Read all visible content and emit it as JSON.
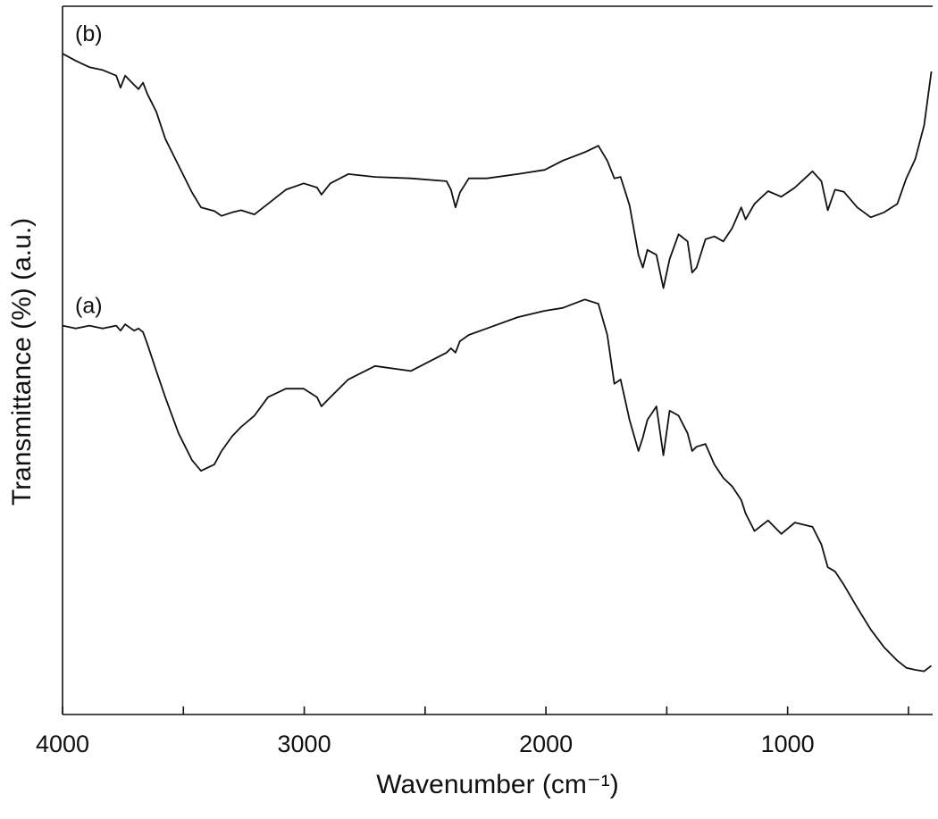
{
  "chart_data": {
    "type": "line",
    "xlabel": "Wavenumber (cm⁻¹)",
    "ylabel": "Transmittance (%) (a.u.)",
    "x": [
      4000,
      3945,
      3889,
      3834,
      3778,
      3760,
      3741,
      3704,
      3686,
      3667,
      3649,
      3612,
      3575,
      3520,
      3464,
      3427,
      3372,
      3342,
      3298,
      3261,
      3206,
      3150,
      3076,
      3002,
      2947,
      2929,
      2892,
      2818,
      2707,
      2559,
      2411,
      2393,
      2374,
      2356,
      2319,
      2245,
      2116,
      2005,
      1931,
      1839,
      1783,
      1746,
      1717,
      1691,
      1654,
      1617,
      1599,
      1580,
      1543,
      1514,
      1488,
      1451,
      1414,
      1395,
      1377,
      1340,
      1303,
      1266,
      1229,
      1192,
      1174,
      1137,
      1081,
      1026,
      970,
      897,
      860,
      834,
      804,
      767,
      712,
      656,
      601,
      546,
      509,
      472,
      435,
      405
    ],
    "series": [
      {
        "name": "(a)",
        "color": "#111111",
        "values": [
          54.9,
          54.5,
          54.9,
          54.5,
          54.9,
          54.2,
          55.1,
          54.2,
          54.5,
          54.0,
          52.3,
          48.5,
          44.8,
          39.7,
          35.9,
          34.4,
          35.3,
          37.2,
          39.3,
          40.6,
          42.2,
          44.8,
          46.0,
          46.0,
          44.8,
          43.5,
          44.8,
          47.3,
          49.2,
          48.5,
          51.1,
          51.7,
          51.1,
          52.7,
          53.6,
          54.5,
          56.1,
          57.0,
          57.4,
          58.6,
          58.0,
          53.6,
          46.7,
          47.3,
          41.6,
          37.2,
          39.1,
          41.6,
          43.5,
          36.6,
          42.9,
          42.2,
          39.7,
          37.2,
          37.8,
          38.2,
          35.3,
          33.4,
          32.2,
          30.3,
          28.4,
          25.9,
          27.4,
          25.5,
          27.1,
          26.5,
          24.0,
          20.8,
          20.2,
          18.3,
          15.1,
          12.0,
          9.5,
          7.6,
          6.6,
          6.3,
          6.1,
          6.9
        ]
      },
      {
        "name": "(b)",
        "color": "#111111",
        "values": [
          93.3,
          92.3,
          91.4,
          91.0,
          90.2,
          88.5,
          90.2,
          88.9,
          88.3,
          89.2,
          87.6,
          85.1,
          81.3,
          77.5,
          73.7,
          71.6,
          71.1,
          70.4,
          70.9,
          71.2,
          70.6,
          72.1,
          74.1,
          75.0,
          74.4,
          73.4,
          75.0,
          76.3,
          75.9,
          75.7,
          75.3,
          74.1,
          71.6,
          73.7,
          75.7,
          75.7,
          76.3,
          76.9,
          78.2,
          79.4,
          80.3,
          78.2,
          75.7,
          75.9,
          71.9,
          64.9,
          63.1,
          65.6,
          64.9,
          60.2,
          64.3,
          67.8,
          66.8,
          62.4,
          63.1,
          67.1,
          67.5,
          66.8,
          68.7,
          71.6,
          69.9,
          72.1,
          73.9,
          73.1,
          74.4,
          76.7,
          75.3,
          71.2,
          74.1,
          73.8,
          71.6,
          70.2,
          70.9,
          72.1,
          75.7,
          78.4,
          83.2,
          90.8
        ]
      }
    ],
    "xlim": [
      4000,
      400
    ],
    "xticks": [
      4000,
      3000,
      2000,
      1000
    ],
    "minor_xticks": [
      3500,
      2500,
      1500,
      500
    ],
    "ylim": [
      0,
      100
    ]
  }
}
